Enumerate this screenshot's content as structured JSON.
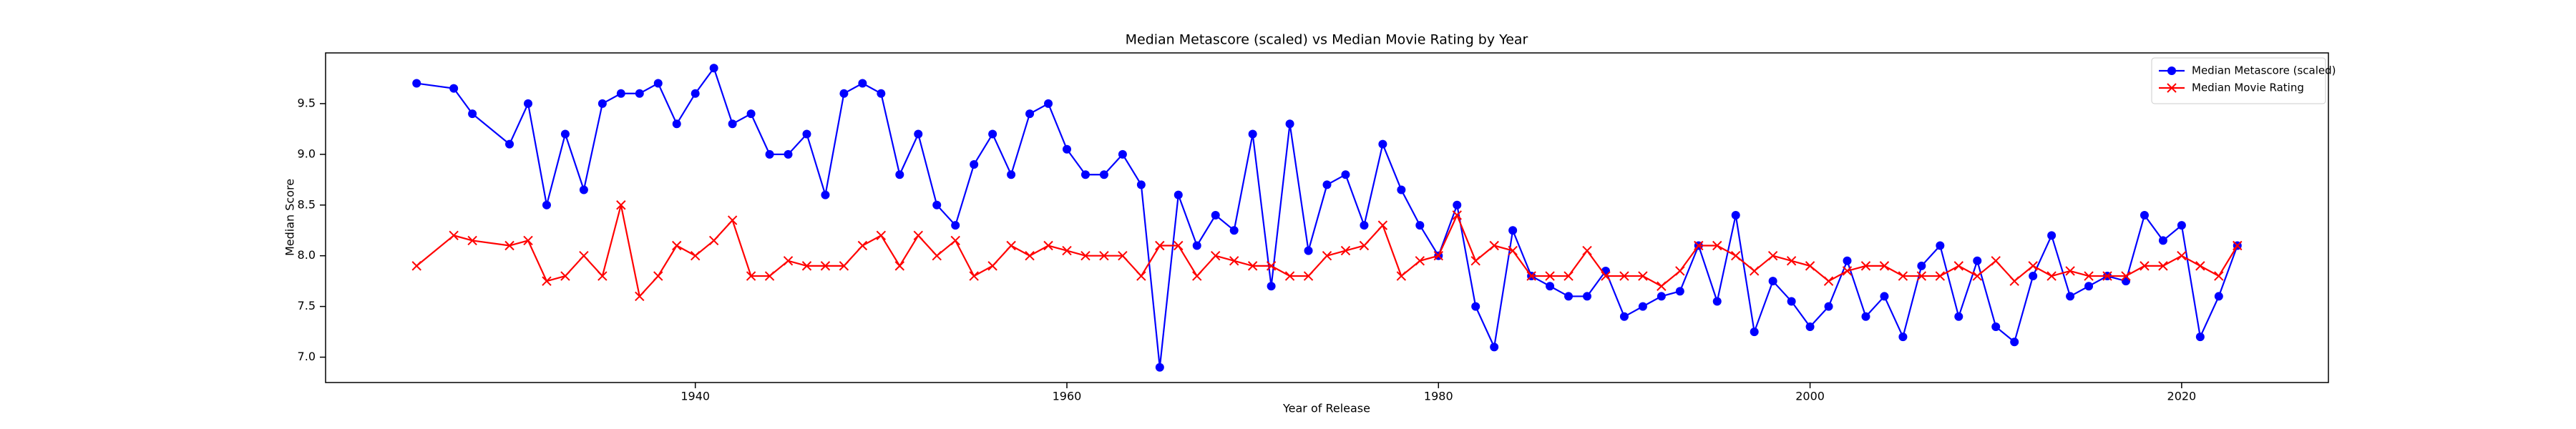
{
  "chart_data": {
    "type": "line",
    "title": "Median Metascore (scaled) vs Median Movie Rating by Year",
    "xlabel": "Year of Release",
    "ylabel": "Median Score",
    "x": [
      1925,
      1927,
      1928,
      1930,
      1931,
      1932,
      1933,
      1934,
      1935,
      1936,
      1937,
      1938,
      1939,
      1940,
      1941,
      1942,
      1943,
      1944,
      1945,
      1946,
      1947,
      1948,
      1949,
      1950,
      1951,
      1952,
      1953,
      1954,
      1955,
      1956,
      1957,
      1958,
      1959,
      1960,
      1961,
      1962,
      1963,
      1964,
      1965,
      1966,
      1967,
      1968,
      1969,
      1970,
      1971,
      1972,
      1973,
      1974,
      1975,
      1976,
      1977,
      1978,
      1979,
      1980,
      1981,
      1982,
      1983,
      1984,
      1985,
      1986,
      1987,
      1988,
      1989,
      1990,
      1991,
      1992,
      1993,
      1994,
      1995,
      1996,
      1997,
      1998,
      1999,
      2000,
      2001,
      2002,
      2003,
      2004,
      2005,
      2006,
      2007,
      2008,
      2009,
      2010,
      2011,
      2012,
      2013,
      2014,
      2015,
      2016,
      2017,
      2018,
      2019,
      2020,
      2021,
      2022,
      2023
    ],
    "series": [
      {
        "name": "Median Metascore (scaled)",
        "color": "#0000ff",
        "marker": "o",
        "values": [
          9.7,
          9.65,
          9.4,
          9.1,
          9.5,
          8.5,
          9.2,
          8.65,
          9.5,
          9.6,
          9.6,
          9.7,
          9.3,
          9.6,
          9.85,
          9.3,
          9.4,
          9.0,
          9.0,
          9.2,
          8.6,
          9.6,
          9.7,
          9.6,
          8.8,
          9.2,
          8.5,
          8.3,
          8.9,
          9.2,
          8.8,
          9.4,
          9.5,
          9.05,
          8.8,
          8.8,
          9.0,
          8.7,
          6.9,
          8.6,
          8.1,
          8.4,
          8.25,
          9.2,
          7.7,
          9.3,
          8.05,
          8.7,
          8.8,
          8.3,
          9.1,
          8.65,
          8.3,
          8.0,
          8.5,
          7.5,
          7.1,
          8.25,
          7.8,
          7.7,
          7.6,
          7.6,
          7.85,
          7.4,
          7.5,
          7.6,
          7.65,
          8.1,
          7.55,
          8.4,
          7.25,
          7.75,
          7.55,
          7.3,
          7.5,
          7.95,
          7.4,
          7.6,
          7.2,
          7.9,
          8.1,
          7.4,
          7.95,
          7.3,
          7.15,
          7.8,
          8.2,
          7.6,
          7.7,
          7.8,
          7.75,
          8.4,
          8.15,
          8.3,
          7.2,
          7.6,
          8.1
        ]
      },
      {
        "name": "Median Movie Rating",
        "color": "#ff0000",
        "marker": "x",
        "values": [
          7.9,
          8.2,
          8.15,
          8.1,
          8.15,
          7.75,
          7.8,
          8.0,
          7.8,
          8.5,
          7.6,
          7.8,
          8.1,
          8.0,
          8.15,
          8.35,
          7.8,
          7.8,
          7.95,
          7.9,
          7.9,
          7.9,
          8.1,
          8.2,
          7.9,
          8.2,
          8.0,
          8.15,
          7.8,
          7.9,
          8.1,
          8.0,
          8.1,
          8.05,
          8.0,
          8.0,
          8.0,
          7.8,
          8.1,
          8.1,
          7.8,
          8.0,
          7.95,
          7.9,
          7.9,
          7.8,
          7.8,
          8.0,
          8.05,
          8.1,
          8.3,
          7.8,
          7.95,
          8.0,
          8.4,
          7.95,
          8.1,
          8.05,
          7.8,
          7.8,
          7.8,
          8.05,
          7.8,
          7.8,
          7.8,
          7.7,
          7.85,
          8.1,
          8.1,
          8.0,
          7.85,
          8.0,
          7.95,
          7.9,
          7.75,
          7.85,
          7.9,
          7.9,
          7.8,
          7.8,
          7.8,
          7.9,
          7.8,
          7.95,
          7.75,
          7.9,
          7.8,
          7.85,
          7.8,
          7.8,
          7.8,
          7.9,
          7.9,
          8.0,
          7.9,
          7.8,
          8.1
        ]
      }
    ],
    "xlim": [
      1920.1,
      2027.9
    ],
    "xticks": [
      1940,
      1960,
      1980,
      2000,
      2020
    ],
    "ylim": [
      6.75,
      10.0
    ],
    "yticks": [
      {
        "value": 7,
        "label": "7.0"
      },
      7.5,
      {
        "value": 8,
        "label": "8.0"
      },
      8.5,
      {
        "value": 9,
        "label": "9.0"
      },
      9.5
    ],
    "grid": false,
    "legend": "upper right"
  }
}
